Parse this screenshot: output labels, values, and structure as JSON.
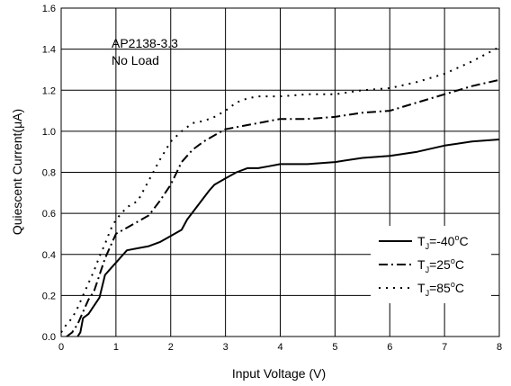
{
  "chart_data": {
    "type": "line",
    "xlabel": "Input Voltage (V)",
    "ylabel": "Quiescent  Current(μA)",
    "xlim": [
      0,
      8
    ],
    "ylim": [
      0.0,
      1.6
    ],
    "x_ticks": [
      "0",
      "1",
      "2",
      "3",
      "4",
      "5",
      "6",
      "7",
      "8"
    ],
    "y_ticks": [
      "0.0",
      "0.2",
      "0.4",
      "0.6",
      "0.8",
      "1.0",
      "1.2",
      "1.4",
      "1.6"
    ],
    "grid": true,
    "legend_position": "bottom-right",
    "annotation": [
      "AP2138-3.3",
      "No Load"
    ],
    "series": [
      {
        "legend_parts": {
          "main": "T",
          "sub": "J",
          "val": "=-40",
          "sup": "o",
          "unit": "C"
        },
        "dash": "solid",
        "x": [
          0.3,
          0.35,
          0.4,
          0.5,
          0.6,
          0.7,
          0.8,
          0.9,
          1.0,
          1.1,
          1.2,
          1.4,
          1.6,
          1.8,
          2.0,
          2.2,
          2.3,
          2.5,
          2.7,
          2.8,
          3.0,
          3.2,
          3.4,
          3.6,
          3.8,
          4.0,
          4.5,
          5.0,
          5.5,
          6.0,
          6.5,
          7.0,
          7.5,
          8.0
        ],
        "y": [
          0.0,
          0.02,
          0.09,
          0.11,
          0.15,
          0.19,
          0.3,
          0.33,
          0.36,
          0.39,
          0.42,
          0.43,
          0.44,
          0.46,
          0.49,
          0.52,
          0.57,
          0.64,
          0.71,
          0.74,
          0.77,
          0.8,
          0.82,
          0.82,
          0.83,
          0.84,
          0.84,
          0.85,
          0.87,
          0.88,
          0.9,
          0.93,
          0.95,
          0.96
        ]
      },
      {
        "legend_parts": {
          "main": "T",
          "sub": "J",
          "val": "=25",
          "sup": "o",
          "unit": "C"
        },
        "dash": "dashdot",
        "x": [
          0.1,
          0.2,
          0.3,
          0.4,
          0.5,
          0.6,
          0.7,
          0.8,
          0.9,
          1.0,
          1.2,
          1.4,
          1.6,
          1.8,
          2.0,
          2.2,
          2.4,
          2.6,
          2.8,
          3.0,
          3.2,
          3.4,
          3.6,
          3.8,
          4.0,
          4.5,
          5.0,
          5.5,
          6.0,
          6.5,
          7.0,
          7.5,
          8.0
        ],
        "y": [
          0.0,
          0.02,
          0.06,
          0.12,
          0.18,
          0.22,
          0.3,
          0.38,
          0.44,
          0.5,
          0.53,
          0.56,
          0.59,
          0.66,
          0.74,
          0.85,
          0.91,
          0.95,
          0.98,
          1.01,
          1.02,
          1.03,
          1.04,
          1.05,
          1.06,
          1.06,
          1.07,
          1.09,
          1.1,
          1.14,
          1.18,
          1.22,
          1.25
        ]
      },
      {
        "legend_parts": {
          "main": "T",
          "sub": "J",
          "val": "=85",
          "sup": "o",
          "unit": "C"
        },
        "dash": "dotted",
        "x": [
          0.0,
          0.1,
          0.2,
          0.3,
          0.4,
          0.5,
          0.6,
          0.7,
          0.8,
          0.9,
          1.0,
          1.2,
          1.4,
          1.6,
          1.8,
          2.0,
          2.2,
          2.4,
          2.6,
          2.8,
          3.0,
          3.2,
          3.4,
          3.6,
          3.8,
          4.0,
          4.5,
          5.0,
          5.5,
          6.0,
          6.5,
          7.0,
          7.5,
          8.0
        ],
        "y": [
          0.02,
          0.06,
          0.09,
          0.14,
          0.2,
          0.26,
          0.32,
          0.39,
          0.45,
          0.52,
          0.57,
          0.63,
          0.66,
          0.76,
          0.86,
          0.95,
          1.0,
          1.04,
          1.05,
          1.07,
          1.1,
          1.14,
          1.16,
          1.17,
          1.17,
          1.17,
          1.18,
          1.18,
          1.2,
          1.21,
          1.24,
          1.28,
          1.34,
          1.41
        ]
      }
    ]
  }
}
